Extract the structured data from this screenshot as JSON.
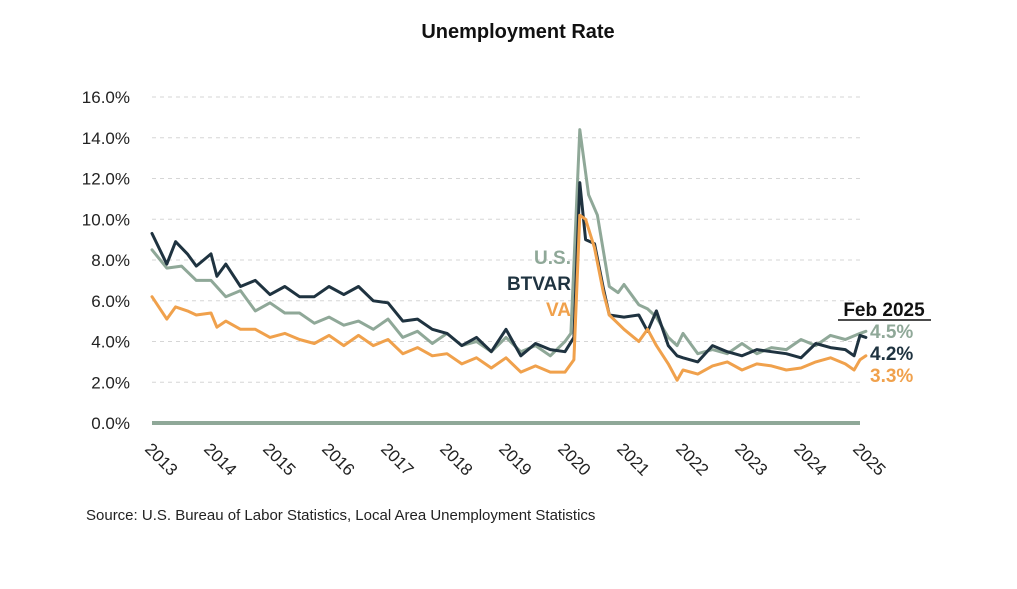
{
  "chart_data": {
    "type": "line",
    "title": "Unemployment Rate",
    "xlabel": "",
    "ylabel": "",
    "ylim": [
      0,
      16
    ],
    "yticks": [
      "0.0%",
      "2.0%",
      "4.0%",
      "6.0%",
      "8.0%",
      "10.0%",
      "12.0%",
      "14.0%",
      "16.0%"
    ],
    "xlim": [
      2013,
      2025.25
    ],
    "xticks": [
      "2013",
      "2014",
      "2015",
      "2016",
      "2017",
      "2018",
      "2019",
      "2020",
      "2021",
      "2022",
      "2023",
      "2024",
      "2025"
    ],
    "grid": "horizontal dashed",
    "series": [
      {
        "name": "U.S.",
        "color": "#8fa898",
        "end_label": "4.5%",
        "points": [
          [
            2013.0,
            8.5
          ],
          [
            2013.25,
            7.6
          ],
          [
            2013.5,
            7.7
          ],
          [
            2013.75,
            7.0
          ],
          [
            2014.0,
            7.0
          ],
          [
            2014.25,
            6.2
          ],
          [
            2014.5,
            6.5
          ],
          [
            2014.75,
            5.5
          ],
          [
            2015.0,
            5.9
          ],
          [
            2015.25,
            5.4
          ],
          [
            2015.5,
            5.4
          ],
          [
            2015.75,
            4.9
          ],
          [
            2016.0,
            5.2
          ],
          [
            2016.25,
            4.8
          ],
          [
            2016.5,
            5.0
          ],
          [
            2016.75,
            4.6
          ],
          [
            2017.0,
            5.1
          ],
          [
            2017.25,
            4.2
          ],
          [
            2017.5,
            4.5
          ],
          [
            2017.75,
            3.9
          ],
          [
            2018.0,
            4.4
          ],
          [
            2018.25,
            3.8
          ],
          [
            2018.5,
            4.0
          ],
          [
            2018.75,
            3.5
          ],
          [
            2019.0,
            4.2
          ],
          [
            2019.25,
            3.5
          ],
          [
            2019.5,
            3.8
          ],
          [
            2019.75,
            3.3
          ],
          [
            2020.0,
            4.0
          ],
          [
            2020.1,
            4.4
          ],
          [
            2020.25,
            14.4
          ],
          [
            2020.4,
            11.2
          ],
          [
            2020.55,
            10.2
          ],
          [
            2020.75,
            6.7
          ],
          [
            2020.9,
            6.4
          ],
          [
            2021.0,
            6.8
          ],
          [
            2021.25,
            5.8
          ],
          [
            2021.4,
            5.6
          ],
          [
            2021.55,
            5.2
          ],
          [
            2021.75,
            4.2
          ],
          [
            2021.9,
            3.8
          ],
          [
            2022.0,
            4.4
          ],
          [
            2022.25,
            3.4
          ],
          [
            2022.5,
            3.6
          ],
          [
            2022.75,
            3.4
          ],
          [
            2023.0,
            3.9
          ],
          [
            2023.25,
            3.4
          ],
          [
            2023.5,
            3.7
          ],
          [
            2023.75,
            3.6
          ],
          [
            2024.0,
            4.1
          ],
          [
            2024.25,
            3.8
          ],
          [
            2024.5,
            4.3
          ],
          [
            2024.75,
            4.1
          ],
          [
            2025.0,
            4.4
          ],
          [
            2025.1,
            4.5
          ]
        ]
      },
      {
        "name": "BTVAR",
        "color": "#1f3340",
        "end_label": "4.2%",
        "points": [
          [
            2013.0,
            9.3
          ],
          [
            2013.25,
            7.8
          ],
          [
            2013.4,
            8.9
          ],
          [
            2013.6,
            8.3
          ],
          [
            2013.75,
            7.7
          ],
          [
            2014.0,
            8.3
          ],
          [
            2014.1,
            7.2
          ],
          [
            2014.25,
            7.8
          ],
          [
            2014.5,
            6.7
          ],
          [
            2014.75,
            7.0
          ],
          [
            2015.0,
            6.3
          ],
          [
            2015.25,
            6.7
          ],
          [
            2015.5,
            6.2
          ],
          [
            2015.75,
            6.2
          ],
          [
            2016.0,
            6.7
          ],
          [
            2016.25,
            6.3
          ],
          [
            2016.5,
            6.7
          ],
          [
            2016.75,
            6.0
          ],
          [
            2017.0,
            5.9
          ],
          [
            2017.25,
            5.0
          ],
          [
            2017.5,
            5.1
          ],
          [
            2017.75,
            4.6
          ],
          [
            2018.0,
            4.4
          ],
          [
            2018.25,
            3.8
          ],
          [
            2018.5,
            4.2
          ],
          [
            2018.75,
            3.5
          ],
          [
            2019.0,
            4.6
          ],
          [
            2019.25,
            3.3
          ],
          [
            2019.5,
            3.9
          ],
          [
            2019.75,
            3.6
          ],
          [
            2020.0,
            3.5
          ],
          [
            2020.15,
            4.2
          ],
          [
            2020.25,
            11.8
          ],
          [
            2020.35,
            9.0
          ],
          [
            2020.5,
            8.8
          ],
          [
            2020.65,
            6.6
          ],
          [
            2020.75,
            5.3
          ],
          [
            2021.0,
            5.2
          ],
          [
            2021.25,
            5.3
          ],
          [
            2021.4,
            4.5
          ],
          [
            2021.55,
            5.5
          ],
          [
            2021.75,
            3.8
          ],
          [
            2021.9,
            3.3
          ],
          [
            2022.0,
            3.2
          ],
          [
            2022.25,
            3.0
          ],
          [
            2022.5,
            3.8
          ],
          [
            2022.75,
            3.5
          ],
          [
            2023.0,
            3.3
          ],
          [
            2023.25,
            3.6
          ],
          [
            2023.5,
            3.5
          ],
          [
            2023.75,
            3.4
          ],
          [
            2024.0,
            3.2
          ],
          [
            2024.25,
            3.9
          ],
          [
            2024.5,
            3.7
          ],
          [
            2024.75,
            3.6
          ],
          [
            2024.9,
            3.3
          ],
          [
            2025.0,
            4.3
          ],
          [
            2025.1,
            4.2
          ]
        ]
      },
      {
        "name": "VA",
        "color": "#f0a14c",
        "end_label": "3.3%",
        "points": [
          [
            2013.0,
            6.2
          ],
          [
            2013.25,
            5.1
          ],
          [
            2013.4,
            5.7
          ],
          [
            2013.6,
            5.5
          ],
          [
            2013.75,
            5.3
          ],
          [
            2014.0,
            5.4
          ],
          [
            2014.1,
            4.7
          ],
          [
            2014.25,
            5.0
          ],
          [
            2014.5,
            4.6
          ],
          [
            2014.75,
            4.6
          ],
          [
            2015.0,
            4.2
          ],
          [
            2015.25,
            4.4
          ],
          [
            2015.5,
            4.1
          ],
          [
            2015.75,
            3.9
          ],
          [
            2016.0,
            4.3
          ],
          [
            2016.25,
            3.8
          ],
          [
            2016.5,
            4.3
          ],
          [
            2016.75,
            3.8
          ],
          [
            2017.0,
            4.1
          ],
          [
            2017.25,
            3.4
          ],
          [
            2017.5,
            3.7
          ],
          [
            2017.75,
            3.3
          ],
          [
            2018.0,
            3.4
          ],
          [
            2018.25,
            2.9
          ],
          [
            2018.5,
            3.2
          ],
          [
            2018.75,
            2.7
          ],
          [
            2019.0,
            3.2
          ],
          [
            2019.25,
            2.5
          ],
          [
            2019.5,
            2.8
          ],
          [
            2019.75,
            2.5
          ],
          [
            2020.0,
            2.5
          ],
          [
            2020.15,
            3.1
          ],
          [
            2020.25,
            10.2
          ],
          [
            2020.35,
            10.0
          ],
          [
            2020.5,
            8.6
          ],
          [
            2020.65,
            6.4
          ],
          [
            2020.75,
            5.3
          ],
          [
            2021.0,
            4.6
          ],
          [
            2021.25,
            4.0
          ],
          [
            2021.4,
            4.6
          ],
          [
            2021.55,
            3.8
          ],
          [
            2021.75,
            2.9
          ],
          [
            2021.9,
            2.1
          ],
          [
            2022.0,
            2.6
          ],
          [
            2022.25,
            2.4
          ],
          [
            2022.5,
            2.8
          ],
          [
            2022.75,
            3.0
          ],
          [
            2023.0,
            2.6
          ],
          [
            2023.25,
            2.9
          ],
          [
            2023.5,
            2.8
          ],
          [
            2023.75,
            2.6
          ],
          [
            2024.0,
            2.7
          ],
          [
            2024.25,
            3.0
          ],
          [
            2024.5,
            3.2
          ],
          [
            2024.75,
            2.9
          ],
          [
            2024.9,
            2.6
          ],
          [
            2025.0,
            3.1
          ],
          [
            2025.1,
            3.3
          ]
        ]
      }
    ],
    "annotation_date": "Feb 2025",
    "source": "Source: U.S. Bureau of Labor Statistics, Local Area Unemployment Statistics"
  }
}
